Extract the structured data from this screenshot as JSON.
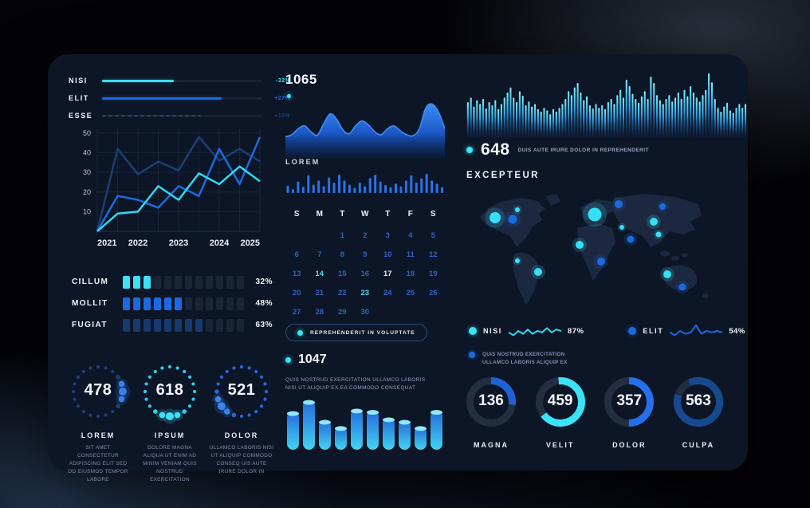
{
  "middle": {
    "stat_value": "1065",
    "lorem_label": "LOREM",
    "button_label": "REPREHENDERIT IN VOLUPTATE",
    "stat2_value": "1047",
    "stat2_caption": "QUIS NOSTRUD EXERCITATION ULLAMCO LABORIS\nNISI UT ALIQUIP EX EA COMMODO CONSEQUAT"
  },
  "right": {
    "stat_value": "648",
    "stat_caption": "DUIS AUTE IRURE DOLOR IN REPREHENDERIT",
    "map_title": "EXCEPTEUR",
    "note_text": "QUIS NOSTRUD EXERCITATION\nULLAMCO LABORIS ALIQUIP EX"
  },
  "chart_data": [
    {
      "id": "trend-bars",
      "type": "bar",
      "items": [
        {
          "label": "NISI",
          "value": "-32%",
          "fill_pct": 45,
          "color": "#38e0f6",
          "style": "solid"
        },
        {
          "label": "ELIT",
          "value": "+27%",
          "fill_pct": 75,
          "color": "#1d6ae0",
          "style": "solid"
        },
        {
          "label": "ESSE",
          "value": "+13%",
          "fill_pct": 62,
          "color": "#1c3e74",
          "style": "dashed"
        }
      ]
    },
    {
      "id": "line-chart",
      "type": "line",
      "x_tick_labels": [
        "2021",
        "2022",
        "2023",
        "2024",
        "2025"
      ],
      "y_ticks": [
        10,
        20,
        30,
        40,
        50
      ],
      "ylim": [
        0,
        52
      ],
      "grid": true,
      "series": [
        {
          "name": "navy",
          "color": "#1c3e74",
          "values": [
            0,
            42,
            29,
            35.5,
            31,
            48,
            36,
            42,
            35.5
          ]
        },
        {
          "name": "blue",
          "color": "#1d6ae0",
          "values": [
            0,
            18,
            16,
            12,
            23,
            18,
            42,
            24,
            48
          ]
        },
        {
          "name": "cyan",
          "color": "#2fd9f2",
          "values": [
            0,
            9,
            10,
            23,
            16,
            29.5,
            24,
            33,
            25.5
          ]
        }
      ]
    },
    {
      "id": "segment-bars",
      "type": "bar",
      "items": [
        {
          "label": "CILLUM",
          "value": "32%",
          "filled": 3,
          "total": 12,
          "color": "#3ae3f8"
        },
        {
          "label": "MOLLIT",
          "value": "48%",
          "filled": 6,
          "total": 12,
          "color": "#1d6ae0"
        },
        {
          "label": "FUGIAT",
          "value": "63%",
          "filled": 8,
          "total": 12,
          "color": "#17396e"
        }
      ]
    },
    {
      "id": "dial-circles",
      "type": "pie",
      "items": [
        {
          "value": "478",
          "label": "LOREM",
          "caption": "SIT AMET CONSECTETUR ADIPISCING ELIT SED DO EIUSMOD TEMPOR LABORE",
          "base_color": "#1e3f77",
          "accent_color": "#3a80f0",
          "accent_center": 5
        },
        {
          "value": "618",
          "label": "IPSUM",
          "caption": "DOLORE MAGNA ALIQUA UT ENIM AD MINIM VENIAM QUIS NOSTRUD EXERCITATION",
          "base_color": "#35c9ec",
          "accent_color": "#3ae3f8",
          "accent_center": 10
        },
        {
          "value": "521",
          "label": "DOLOR",
          "caption": "ULLAMCO LABORIS NISI UT ALIQUIP COMMODO CONSEQ UIS AUTE IRURE DOLOR IN",
          "base_color": "#2a66d8",
          "accent_color": "#3a86f0",
          "accent_center": 13
        }
      ]
    },
    {
      "id": "area",
      "type": "area",
      "values": [
        30,
        34,
        46,
        52,
        40,
        33,
        56,
        76,
        66,
        44,
        36,
        52,
        62,
        54,
        40,
        34,
        46,
        52,
        42,
        34,
        32,
        46,
        88,
        96,
        80,
        46
      ]
    },
    {
      "id": "mini-bars",
      "type": "bar",
      "color": "#2a72e8",
      "values": [
        0.35,
        0.18,
        0.55,
        0.3,
        0.85,
        0.4,
        0.6,
        0.32,
        0.75,
        0.5,
        0.88,
        0.6,
        0.4,
        0.25,
        0.5,
        0.32,
        0.72,
        0.88,
        0.55,
        0.38,
        0.28,
        0.45,
        0.32,
        0.6,
        0.85,
        0.5,
        0.7,
        0.92,
        0.6,
        0.45,
        0.28
      ]
    },
    {
      "id": "calendar",
      "type": "table",
      "headers": [
        "S",
        "M",
        "T",
        "W",
        "T",
        "F",
        "S"
      ],
      "start_offset": 2,
      "days": 30,
      "highlight": [
        14,
        23
      ],
      "highlight_bright": [
        17
      ]
    },
    {
      "id": "cylinders",
      "type": "bar",
      "values": [
        62,
        80,
        48,
        38,
        66,
        64,
        52,
        48,
        38,
        64
      ]
    },
    {
      "id": "waveform",
      "type": "bar",
      "values": [
        0.55,
        0.62,
        0.48,
        0.58,
        0.52,
        0.6,
        0.45,
        0.55,
        0.5,
        0.58,
        0.44,
        0.52,
        0.62,
        0.7,
        0.78,
        0.62,
        0.55,
        0.72,
        0.65,
        0.5,
        0.56,
        0.48,
        0.52,
        0.44,
        0.4,
        0.46,
        0.42,
        0.36,
        0.44,
        0.4,
        0.46,
        0.52,
        0.6,
        0.72,
        0.66,
        0.78,
        0.85,
        0.7,
        0.58,
        0.64,
        0.5,
        0.45,
        0.52,
        0.46,
        0.5,
        0.44,
        0.55,
        0.6,
        0.52,
        0.66,
        0.74,
        0.62,
        0.9,
        0.8,
        0.68,
        0.6,
        0.54,
        0.64,
        0.72,
        0.6,
        0.95,
        0.85,
        0.66,
        0.58,
        0.52,
        0.6,
        0.66,
        0.56,
        0.62,
        0.7,
        0.6,
        0.74,
        0.64,
        0.8,
        0.7,
        0.62,
        0.56,
        0.66,
        0.74,
        1.0,
        0.86,
        0.6,
        0.46,
        0.4,
        0.48,
        0.54,
        0.42,
        0.38,
        0.46,
        0.52,
        0.46,
        0.52
      ]
    },
    {
      "id": "map-dots",
      "type": "scatter",
      "points": [
        {
          "x": 33,
          "y": 39,
          "r": 7,
          "color": "#35dff5"
        },
        {
          "x": 55,
          "y": 41,
          "r": 5.5,
          "color": "#1d6ae0"
        },
        {
          "x": 61,
          "y": 29,
          "r": 3,
          "color": "#35dff5"
        },
        {
          "x": 158,
          "y": 35,
          "r": 8.5,
          "color": "#35dff5"
        },
        {
          "x": 188,
          "y": 22,
          "r": 5,
          "color": "#1d6ae0"
        },
        {
          "x": 243,
          "y": 25,
          "r": 4,
          "color": "#1d6ae0"
        },
        {
          "x": 232,
          "y": 44,
          "r": 5,
          "color": "#35dff5"
        },
        {
          "x": 192,
          "y": 51,
          "r": 3,
          "color": "#35dff5"
        },
        {
          "x": 203,
          "y": 66,
          "r": 4.5,
          "color": "#1d6ae0"
        },
        {
          "x": 238,
          "y": 60,
          "r": 3.5,
          "color": "#35dff5"
        },
        {
          "x": 139,
          "y": 73,
          "r": 5,
          "color": "#35dff5"
        },
        {
          "x": 166,
          "y": 94,
          "r": 5,
          "color": "#1d6ae0"
        },
        {
          "x": 61,
          "y": 93,
          "r": 3,
          "color": "#35dff5"
        },
        {
          "x": 87,
          "y": 107,
          "r": 5,
          "color": "#35dff5"
        },
        {
          "x": 249,
          "y": 110,
          "r": 5,
          "color": "#35dff5"
        },
        {
          "x": 268,
          "y": 126,
          "r": 4.5,
          "color": "#1d6ae0"
        }
      ]
    },
    {
      "id": "sparks",
      "type": "line",
      "items": [
        {
          "label": "NISI",
          "value": "87%",
          "color": "#2fd9f2",
          "dot": "#3ae3f8",
          "values": [
            4,
            2,
            5,
            3,
            6,
            3,
            5,
            4,
            7,
            4,
            6,
            5
          ]
        },
        {
          "label": "ELIT",
          "value": "54%",
          "color": "#1d6ae0",
          "dot": "#1d6ae0",
          "values": [
            4,
            2,
            5,
            3,
            4,
            9,
            3,
            5,
            4,
            5,
            4
          ]
        }
      ]
    },
    {
      "id": "donuts",
      "type": "pie",
      "items": [
        {
          "label": "MAGNA",
          "value": "136",
          "pct": 27,
          "color": "#1d63d8",
          "start": -90
        },
        {
          "label": "VELIT",
          "value": "459",
          "pct": 66,
          "color": "#3ae3f8",
          "start": -95
        },
        {
          "label": "DOLOR",
          "value": "357",
          "pct": 50,
          "color": "#2470ea",
          "start": -90
        },
        {
          "label": "CULPA",
          "value": "563",
          "pct": 87,
          "color": "#17498f",
          "start": -115
        }
      ]
    }
  ]
}
